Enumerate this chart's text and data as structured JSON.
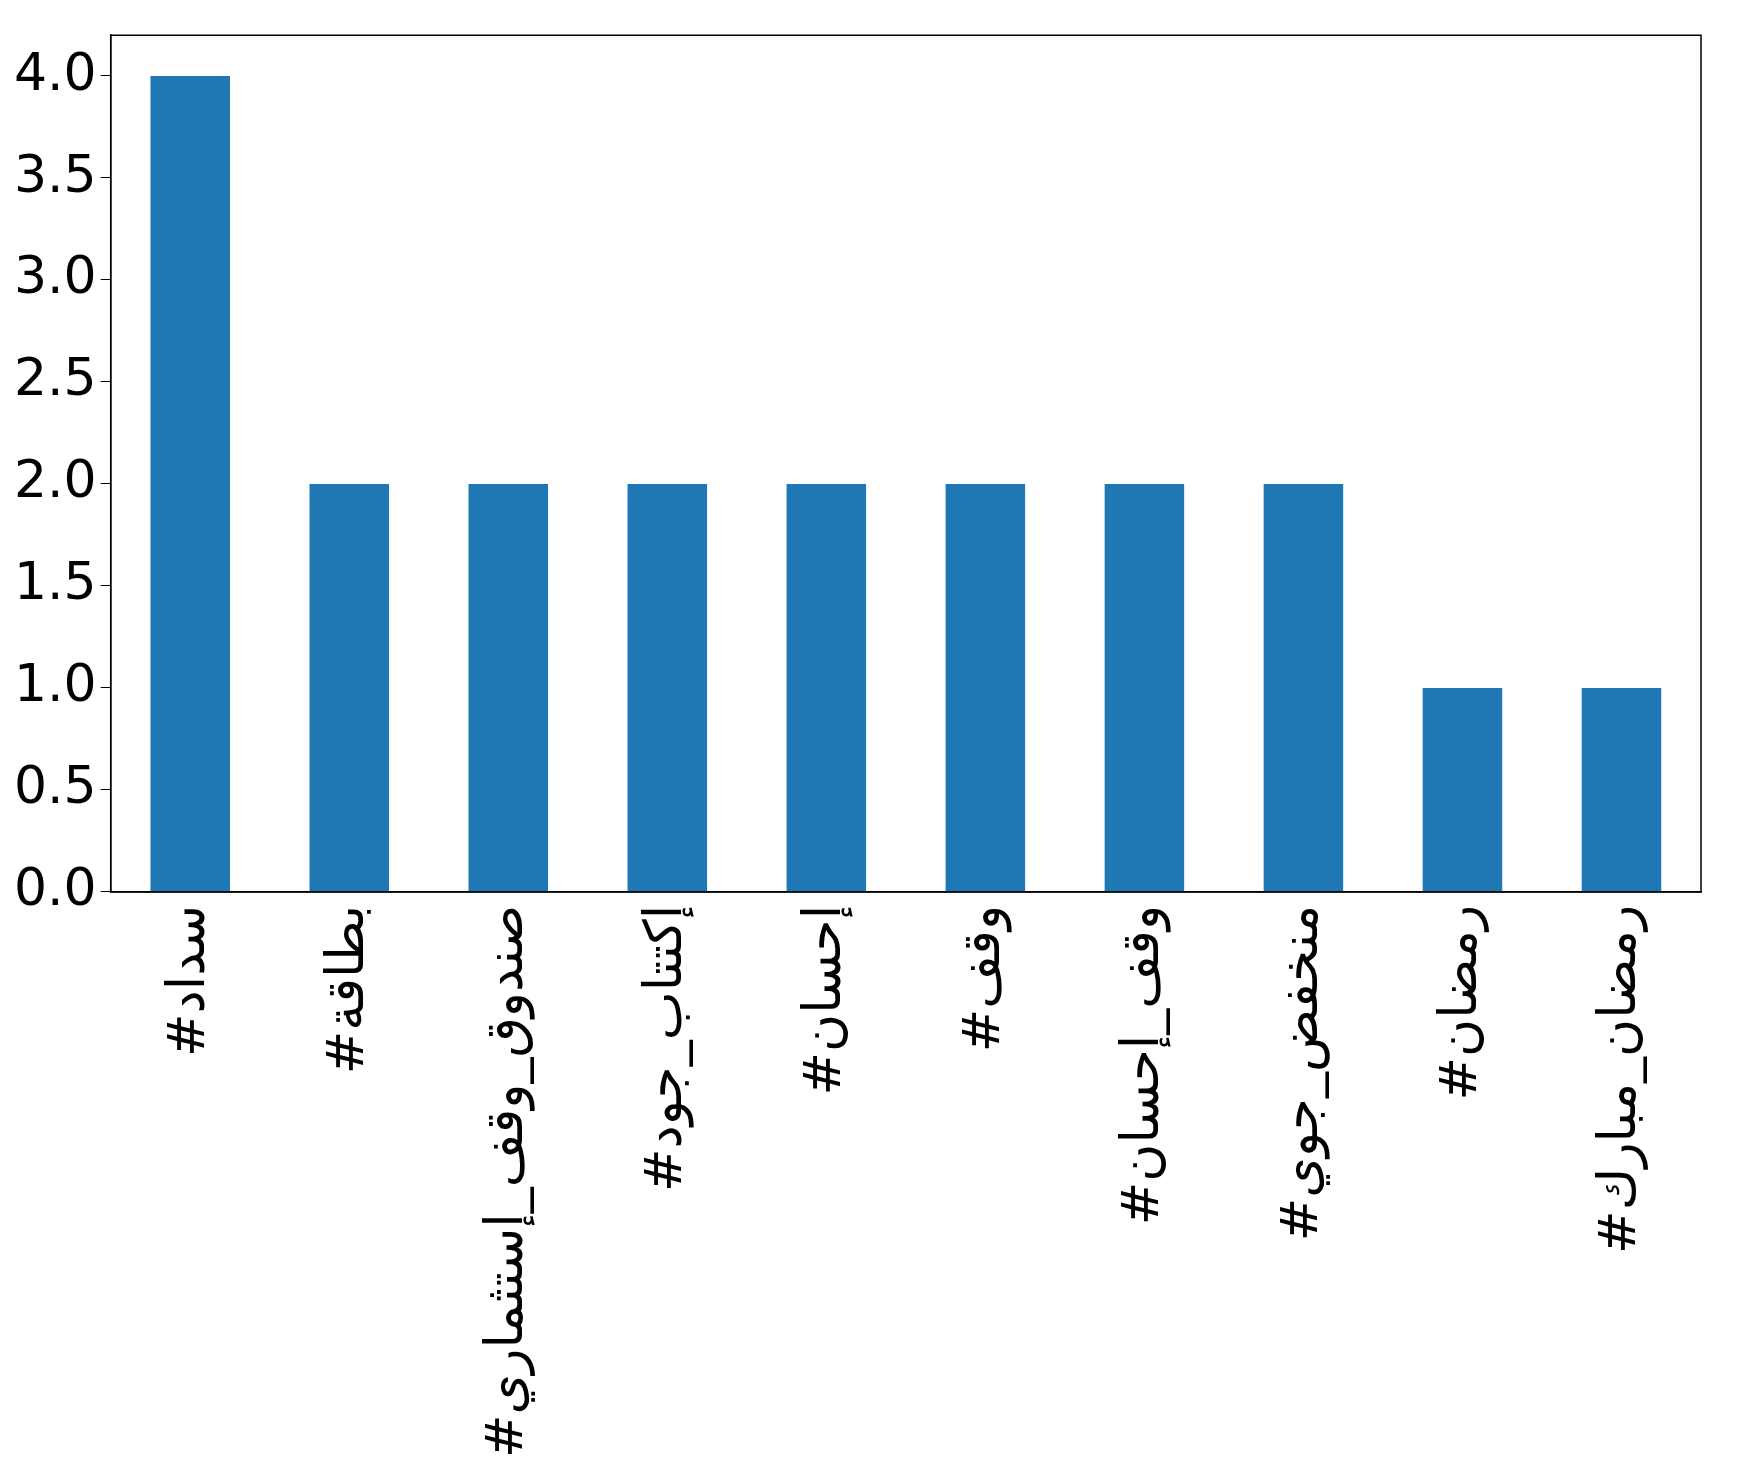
{
  "chart_data": {
    "type": "bar",
    "categories": [
      "#سداد",
      "#بطاقة",
      "#صندوق_وقف_إستثماري",
      "#إكتتاب_جود",
      "#إحسان",
      "#وقف",
      "#وقف_إحسان",
      "#منخفض_جوي",
      "#رمضان",
      "#رمضان_مبارك"
    ],
    "values": [
      4,
      2,
      2,
      2,
      2,
      2,
      2,
      2,
      1,
      1
    ],
    "color": "#1f77b4",
    "ylim": [
      0,
      4.2
    ],
    "yticks": [
      {
        "value": 0,
        "label": "0.0"
      },
      {
        "value": 0.5,
        "label": "0.5"
      },
      {
        "value": 1,
        "label": "1.0"
      },
      {
        "value": 1.5,
        "label": "1.5"
      },
      {
        "value": 2,
        "label": "2.0"
      },
      {
        "value": 2.5,
        "label": "2.5"
      },
      {
        "value": 3,
        "label": "3.0"
      },
      {
        "value": 3.5,
        "label": "3.5"
      },
      {
        "value": 4,
        "label": "4.0"
      }
    ],
    "grid": false,
    "legend": false
  }
}
